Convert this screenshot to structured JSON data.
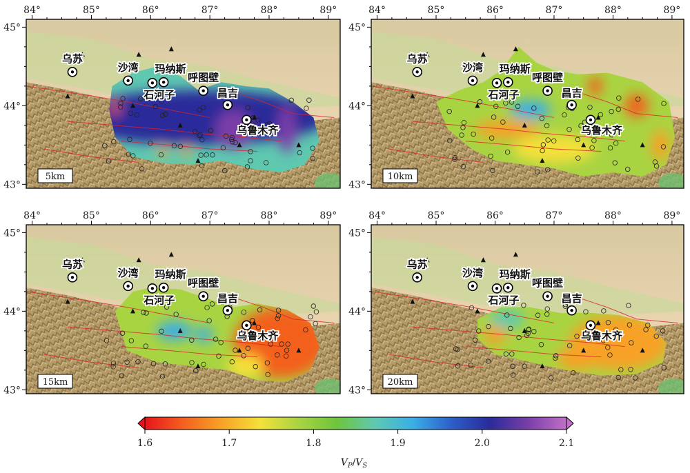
{
  "map": {
    "lon_labels": [
      "84°",
      "85°",
      "86°",
      "87°",
      "88°",
      "89°"
    ],
    "lat_labels": [
      "45°",
      "44°",
      "43°"
    ],
    "lon_range": [
      83.9,
      89.2
    ],
    "lat_range": [
      42.95,
      45.1
    ]
  },
  "cities": [
    {
      "name": "乌苏",
      "lon": 84.68,
      "lat": 44.43
    },
    {
      "name": "沙湾",
      "lon": 85.62,
      "lat": 44.32
    },
    {
      "name": "石河子",
      "lon": 86.03,
      "lat": 44.29
    },
    {
      "name": "玛纳斯",
      "lon": 86.22,
      "lat": 44.3
    },
    {
      "name": "呼图壁",
      "lon": 86.89,
      "lat": 44.19
    },
    {
      "name": "昌吉",
      "lon": 87.3,
      "lat": 44.01
    },
    {
      "name": "乌鲁木齐",
      "lon": 87.62,
      "lat": 43.82
    }
  ],
  "panels": [
    {
      "depth_label": "5km"
    },
    {
      "depth_label": "10km"
    },
    {
      "depth_label": "15km"
    },
    {
      "depth_label": "20km"
    }
  ],
  "colorbar": {
    "ticks": [
      "1.6",
      "1.7",
      "1.8",
      "1.9",
      "2.0",
      "2.1"
    ],
    "min": 1.6,
    "max": 2.1,
    "title_base_1": "V",
    "title_sub_1": "P",
    "title_slash": "/",
    "title_base_2": "V",
    "title_sub_2": "S",
    "colors": [
      "#e8141c",
      "#f3611f",
      "#f7a227",
      "#f5e03a",
      "#a9d442",
      "#6ec43c",
      "#5fc9b0",
      "#3aaee6",
      "#2c5fc8",
      "#2a2b9a",
      "#7a3ea8",
      "#c070c8"
    ]
  },
  "anomalies": [
    [
      {
        "lon": 86.8,
        "lat": 43.85,
        "v": 2.02,
        "rx": 2.2,
        "ry": 0.35
      },
      {
        "lon": 86.4,
        "lat": 43.85,
        "v": 2.03,
        "rx": 0.35,
        "ry": 0.25
      },
      {
        "lon": 87.4,
        "lat": 43.7,
        "v": 2.04,
        "rx": 0.3,
        "ry": 0.25
      },
      {
        "lon": 88.3,
        "lat": 43.7,
        "v": 2.05,
        "rx": 0.15,
        "ry": 0.3
      },
      {
        "lon": 85.4,
        "lat": 43.97,
        "v": 1.66,
        "rx": 0.08,
        "ry": 0.08
      },
      {
        "lon": 86.2,
        "lat": 43.42,
        "v": 1.7,
        "rx": 0.08,
        "ry": 0.08
      },
      {
        "lon": 86.6,
        "lat": 43.42,
        "v": 1.7,
        "rx": 0.08,
        "ry": 0.08
      }
    ],
    [
      {
        "lon": 86.2,
        "lat": 43.7,
        "v": 1.7,
        "rx": 0.55,
        "ry": 0.12
      },
      {
        "lon": 87.0,
        "lat": 43.45,
        "v": 1.72,
        "rx": 0.7,
        "ry": 0.18
      },
      {
        "lon": 88.4,
        "lat": 44.0,
        "v": 1.65,
        "rx": 0.2,
        "ry": 0.15
      },
      {
        "lon": 87.7,
        "lat": 44.25,
        "v": 1.66,
        "rx": 0.12,
        "ry": 0.12
      },
      {
        "lon": 86.6,
        "lat": 43.95,
        "v": 1.9,
        "rx": 0.35,
        "ry": 0.12
      },
      {
        "lon": 88.8,
        "lat": 43.5,
        "v": 1.68,
        "rx": 0.15,
        "ry": 0.2
      }
    ],
    [
      {
        "lon": 88.2,
        "lat": 43.6,
        "v": 1.66,
        "rx": 0.8,
        "ry": 0.45
      },
      {
        "lon": 86.4,
        "lat": 43.75,
        "v": 1.92,
        "rx": 0.3,
        "ry": 0.12
      },
      {
        "lon": 86.9,
        "lat": 43.7,
        "v": 1.9,
        "rx": 0.15,
        "ry": 0.1
      },
      {
        "lon": 87.6,
        "lat": 43.3,
        "v": 1.72,
        "rx": 0.3,
        "ry": 0.15
      }
    ],
    [
      {
        "lon": 88.1,
        "lat": 43.6,
        "v": 1.67,
        "rx": 0.85,
        "ry": 0.35
      },
      {
        "lon": 86.0,
        "lat": 43.7,
        "v": 1.7,
        "rx": 0.2,
        "ry": 0.12
      },
      {
        "lon": 87.4,
        "lat": 43.4,
        "v": 1.68,
        "rx": 0.35,
        "ry": 0.15
      },
      {
        "lon": 86.2,
        "lat": 43.9,
        "v": 1.85,
        "rx": 0.3,
        "ry": 0.12
      }
    ]
  ]
}
